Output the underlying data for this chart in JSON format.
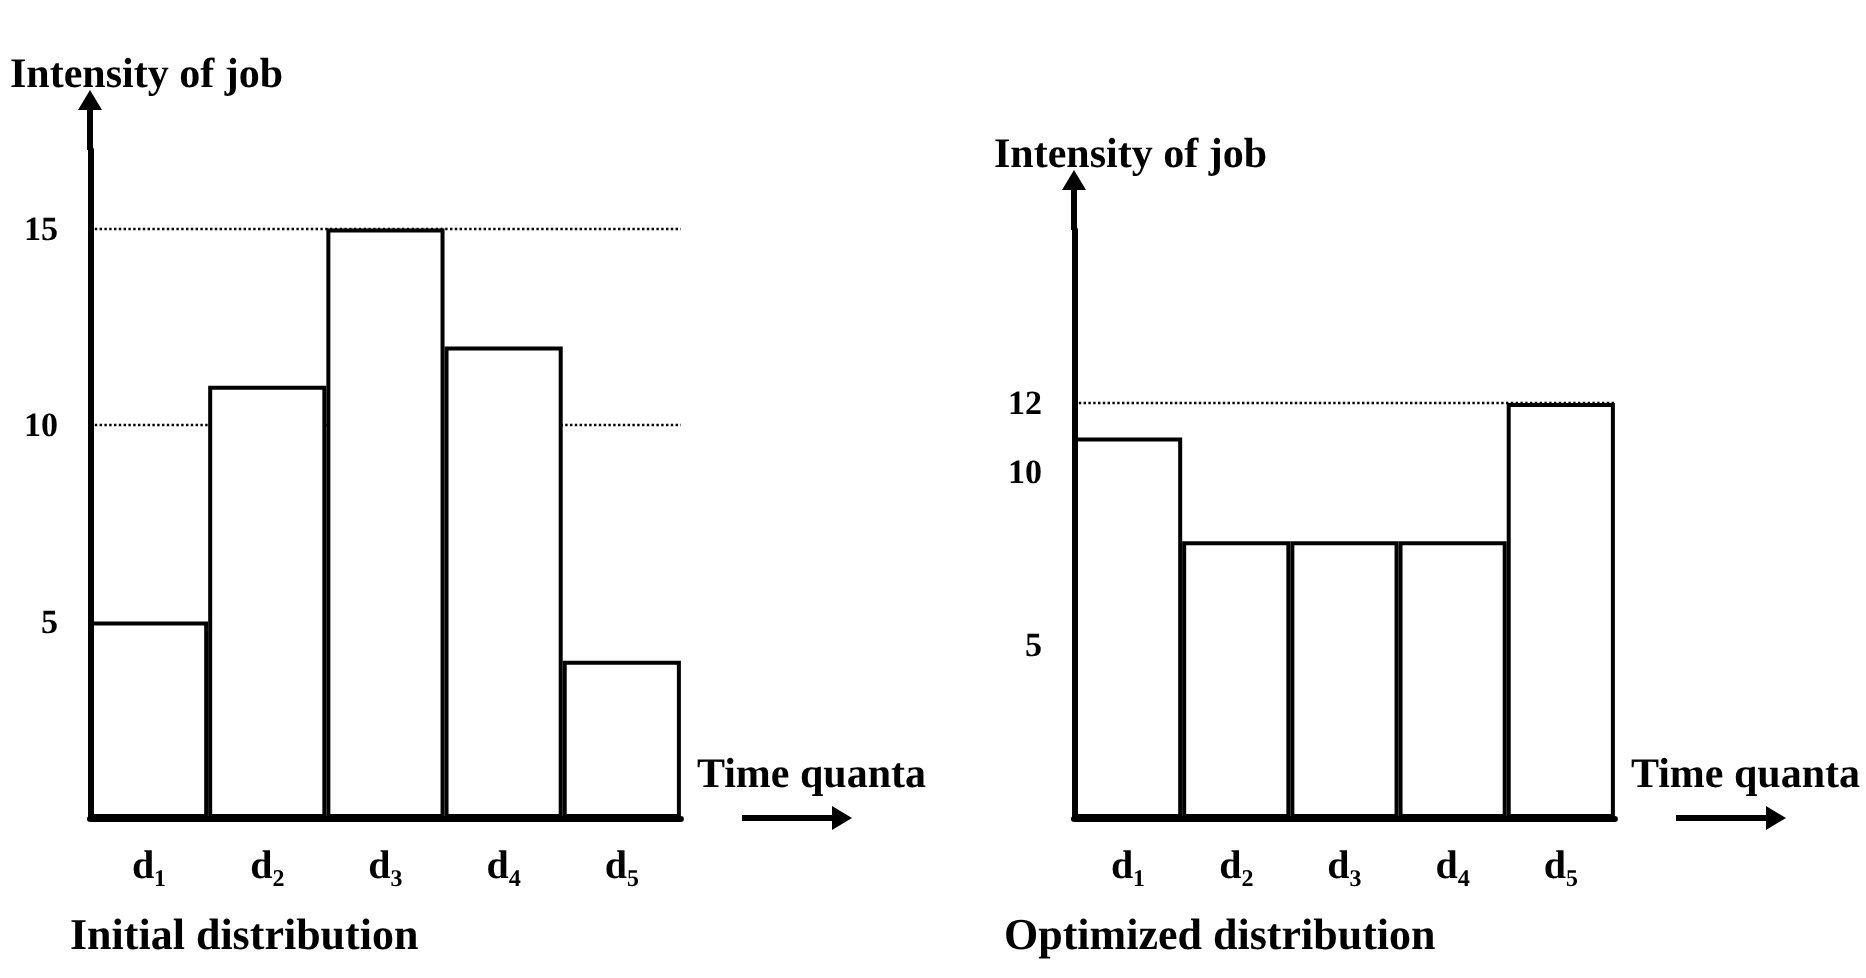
{
  "chart_data": [
    {
      "type": "bar",
      "title": "Initial distribution",
      "ylabel": "Intensity of job",
      "xlabel": "Time quanta",
      "categories": [
        "d₁",
        "d₂",
        "d₃",
        "d₄",
        "d₅"
      ],
      "values": [
        5,
        11,
        15,
        12,
        4
      ],
      "color": "#ffffff",
      "ylim": [
        0,
        17
      ],
      "yticks": [
        5,
        10,
        15
      ],
      "grid": false,
      "ref_lines": [
        {
          "axis": "y",
          "value": 15,
          "line_style": "dotted"
        },
        {
          "axis": "y",
          "value": 10,
          "line_style": "dotted"
        }
      ]
    },
    {
      "type": "bar",
      "title": "Optimized distribution",
      "ylabel": "Intensity of job",
      "xlabel": "Time quanta",
      "categories": [
        "d₁",
        "d₂",
        "d₃",
        "d₄",
        "d₅"
      ],
      "values": [
        11,
        8,
        8,
        8,
        12
      ],
      "color": "#ffffff",
      "ylim": [
        0,
        17
      ],
      "yticks": [
        5,
        10,
        12
      ],
      "grid": false,
      "ref_lines": [
        {
          "axis": "y",
          "value": 12,
          "line_style": "dotted"
        }
      ]
    }
  ]
}
